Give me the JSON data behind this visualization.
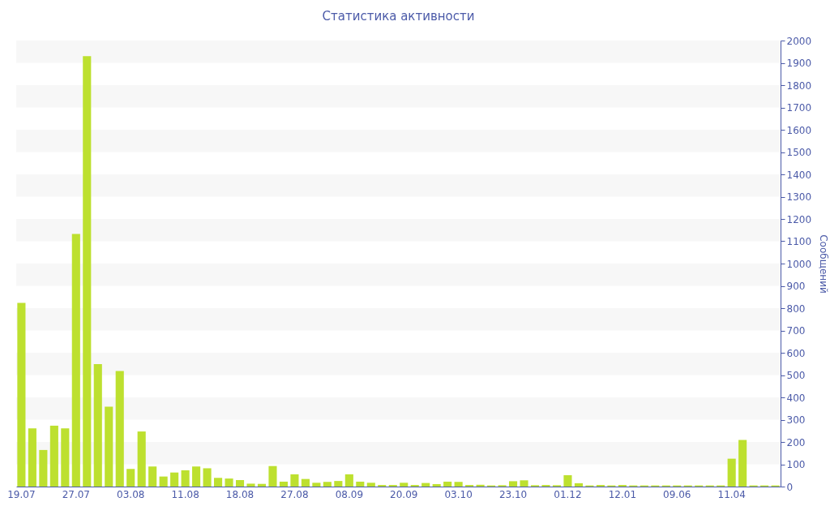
{
  "chart_data": {
    "type": "bar",
    "title": "Статистика активности",
    "ylabel": "Сообщений",
    "categories": [
      "19.07",
      null,
      null,
      null,
      null,
      "27.07",
      null,
      null,
      null,
      null,
      "03.08",
      null,
      null,
      null,
      null,
      "11.08",
      null,
      null,
      null,
      null,
      "18.08",
      null,
      null,
      null,
      null,
      "27.08",
      null,
      null,
      null,
      null,
      "08.09",
      null,
      null,
      null,
      null,
      "20.09",
      null,
      null,
      null,
      null,
      "03.10",
      null,
      null,
      null,
      null,
      "23.10",
      null,
      null,
      null,
      null,
      "01.12",
      null,
      null,
      null,
      null,
      "12.01",
      null,
      null,
      null,
      null,
      "09.06",
      null,
      null,
      null,
      null,
      "11.04",
      null,
      null,
      null,
      null
    ],
    "values": [
      824,
      261,
      164,
      273,
      261,
      1133,
      1930,
      549,
      358,
      518,
      79,
      247,
      90,
      45,
      63,
      73,
      90,
      82,
      39,
      36,
      29,
      13,
      12,
      92,
      22,
      55,
      34,
      17,
      21,
      25,
      55,
      22,
      17,
      7,
      7,
      17,
      7,
      16,
      11,
      22,
      21,
      7,
      8,
      5,
      6,
      24,
      28,
      6,
      7,
      6,
      51,
      15,
      5,
      7,
      5,
      7,
      5,
      5,
      5,
      5,
      5,
      5,
      5,
      5,
      5,
      125,
      209,
      5,
      5,
      5
    ],
    "color": "#bde02f",
    "ylim": [
      0,
      2000
    ],
    "yticks": [
      0,
      100,
      200,
      300,
      400,
      500,
      600,
      700,
      800,
      900,
      1000,
      1100,
      1200,
      1300,
      1400,
      1500,
      1600,
      1700,
      1800,
      1900,
      2000
    ]
  }
}
